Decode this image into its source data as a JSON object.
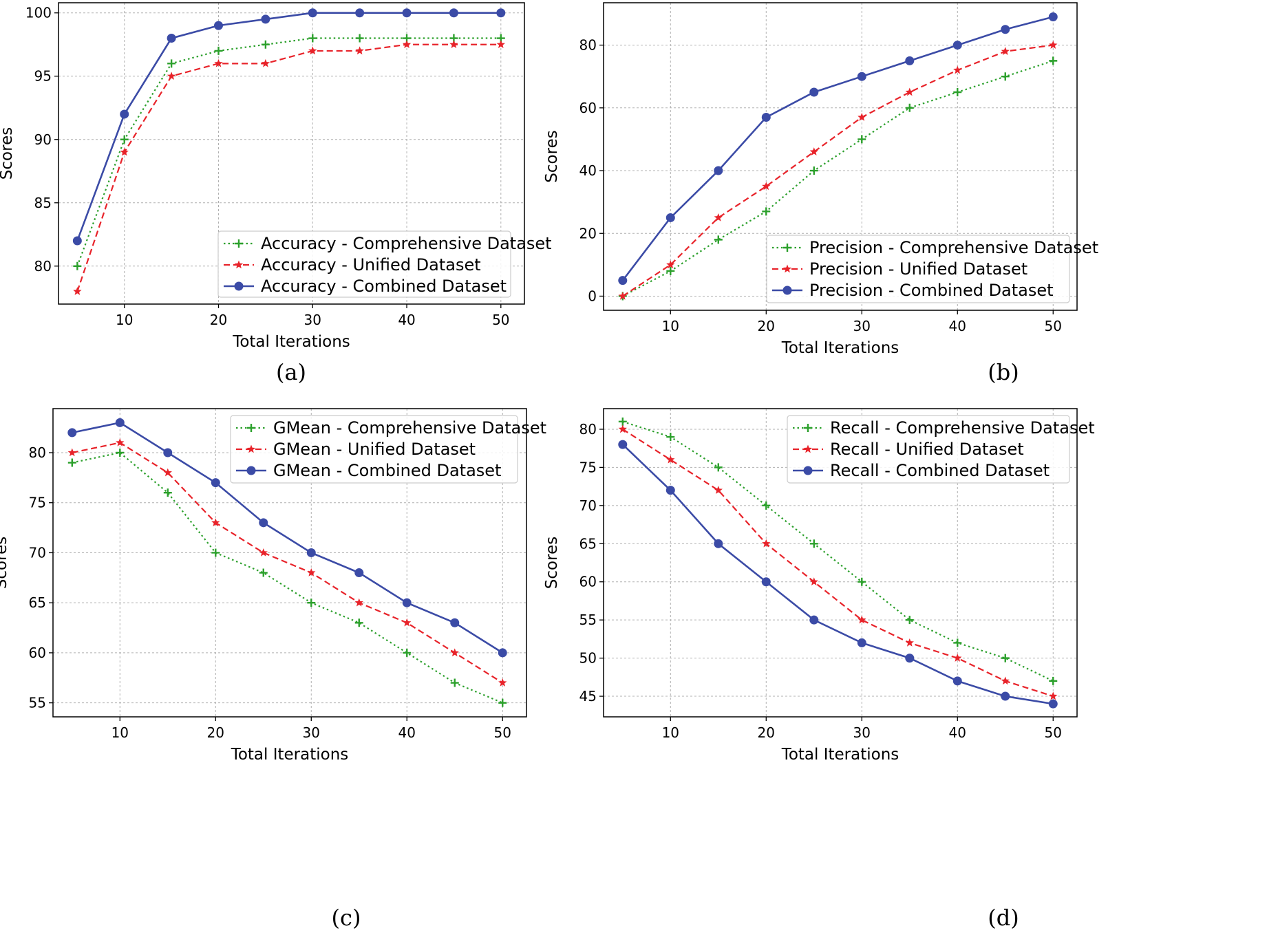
{
  "charts": [
    {
      "caption": "(a)",
      "chart_data": {
        "type": "line",
        "xlabel": "Total Iterations",
        "ylabel": "Scores",
        "xlim": [
          3,
          52.5
        ],
        "ylim": [
          77,
          100.8
        ],
        "xticks": [
          10,
          20,
          30,
          40,
          50
        ],
        "yticks": [
          80,
          85,
          90,
          95,
          100
        ],
        "grid": true,
        "legend_position": "lower-right",
        "x": [
          5,
          10,
          15,
          20,
          25,
          30,
          35,
          40,
          45,
          50
        ],
        "series": [
          {
            "name": "Accuracy - Comprehensive Dataset",
            "color": "#2ca02c",
            "style": "dotted",
            "marker": "plus",
            "values": [
              80,
              90,
              96,
              97,
              97.5,
              98,
              98,
              98,
              98,
              98
            ]
          },
          {
            "name": "Accuracy - Unified Dataset",
            "color": "#e8232a",
            "style": "dashed",
            "marker": "star",
            "values": [
              78,
              89,
              95,
              96,
              96,
              97,
              97,
              97.5,
              97.5,
              97.5
            ]
          },
          {
            "name": "Accuracy - Combined Dataset",
            "color": "#3b4ba6",
            "style": "solid",
            "marker": "circle",
            "values": [
              82,
              92,
              98,
              99,
              99.5,
              100,
              100,
              100,
              100,
              100
            ]
          }
        ]
      }
    },
    {
      "caption": "(b)",
      "chart_data": {
        "type": "line",
        "xlabel": "Total Iterations",
        "ylabel": "Scores",
        "xlim": [
          3,
          52.5
        ],
        "ylim": [
          -4.5,
          93.5
        ],
        "xticks": [
          10,
          20,
          30,
          40,
          50
        ],
        "yticks": [
          0,
          20,
          40,
          60,
          80
        ],
        "grid": true,
        "legend_position": "lower-right",
        "x": [
          5,
          10,
          15,
          20,
          25,
          30,
          35,
          40,
          45,
          50
        ],
        "series": [
          {
            "name": "Precision - Comprehensive Dataset",
            "color": "#2ca02c",
            "style": "dotted",
            "marker": "plus",
            "values": [
              0,
              8,
              18,
              27,
              40,
              50,
              60,
              65,
              70,
              75
            ]
          },
          {
            "name": "Precision - Unified Dataset",
            "color": "#e8232a",
            "style": "dashed",
            "marker": "star",
            "values": [
              0,
              10,
              25,
              35,
              46,
              57,
              65,
              72,
              78,
              80
            ]
          },
          {
            "name": "Precision - Combined Dataset",
            "color": "#3b4ba6",
            "style": "solid",
            "marker": "circle",
            "values": [
              5,
              25,
              40,
              57,
              65,
              70,
              75,
              80,
              85,
              89
            ]
          }
        ]
      }
    },
    {
      "caption": "(c)",
      "chart_data": {
        "type": "line",
        "xlabel": "Total Iterations",
        "ylabel": "Scores",
        "xlim": [
          3,
          52.5
        ],
        "ylim": [
          53.6,
          84.4
        ],
        "xticks": [
          10,
          20,
          30,
          40,
          50
        ],
        "yticks": [
          55,
          60,
          65,
          70,
          75,
          80
        ],
        "grid": true,
        "legend_position": "upper-right",
        "x": [
          5,
          10,
          15,
          20,
          25,
          30,
          35,
          40,
          45,
          50
        ],
        "series": [
          {
            "name": "GMean - Comprehensive Dataset",
            "color": "#2ca02c",
            "style": "dotted",
            "marker": "plus",
            "values": [
              79,
              80,
              76,
              70,
              68,
              65,
              63,
              60,
              57,
              55
            ]
          },
          {
            "name": "GMean - Unified Dataset",
            "color": "#e8232a",
            "style": "dashed",
            "marker": "star",
            "values": [
              80,
              81,
              78,
              73,
              70,
              68,
              65,
              63,
              60,
              57
            ]
          },
          {
            "name": "GMean - Combined Dataset",
            "color": "#3b4ba6",
            "style": "solid",
            "marker": "circle",
            "values": [
              82,
              83,
              80,
              77,
              73,
              70,
              68,
              65,
              63,
              60
            ]
          }
        ]
      }
    },
    {
      "caption": "(d)",
      "chart_data": {
        "type": "line",
        "xlabel": "Total Iterations",
        "ylabel": "Scores",
        "xlim": [
          3,
          52.5
        ],
        "ylim": [
          42.3,
          82.7
        ],
        "xticks": [
          10,
          20,
          30,
          40,
          50
        ],
        "yticks": [
          45,
          50,
          55,
          60,
          65,
          70,
          75,
          80
        ],
        "grid": true,
        "legend_position": "upper-right",
        "x": [
          5,
          10,
          15,
          20,
          25,
          30,
          35,
          40,
          45,
          50
        ],
        "series": [
          {
            "name": "Recall - Comprehensive Dataset",
            "color": "#2ca02c",
            "style": "dotted",
            "marker": "plus",
            "values": [
              81,
              79,
              75,
              70,
              65,
              60,
              55,
              52,
              50,
              47
            ]
          },
          {
            "name": "Recall - Unified Dataset",
            "color": "#e8232a",
            "style": "dashed",
            "marker": "star",
            "values": [
              80,
              76,
              72,
              65,
              60,
              55,
              52,
              50,
              47,
              45
            ]
          },
          {
            "name": "Recall - Combined Dataset",
            "color": "#3b4ba6",
            "style": "solid",
            "marker": "circle",
            "values": [
              78,
              72,
              65,
              60,
              55,
              52,
              50,
              47,
              45,
              44
            ]
          }
        ]
      }
    }
  ]
}
